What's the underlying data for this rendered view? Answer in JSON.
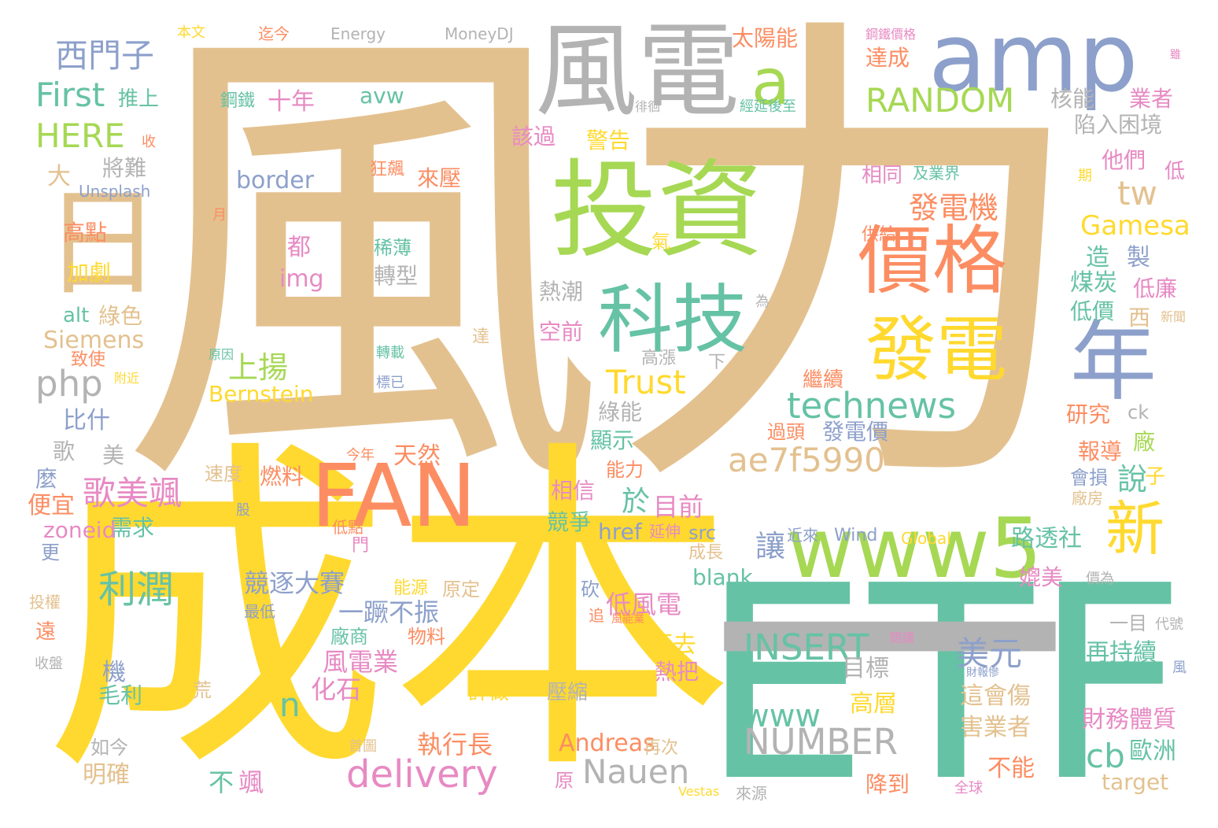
{
  "palette": {
    "tan": "#E3C18F",
    "yellow": "#FFD92F",
    "teal": "#66C2A5",
    "blue": "#8DA0CB",
    "green": "#A6D854",
    "orange": "#FC8D62",
    "gray": "#B3B3B3",
    "pink": "#E78AC3"
  },
  "words": [
    {
      "text": "風力",
      "color": "tan"
    },
    {
      "text": "成本",
      "color": "yellow"
    },
    {
      "text": "ETF",
      "color": "teal"
    },
    {
      "text": "amp",
      "color": "blue"
    },
    {
      "text": "風電",
      "color": "gray"
    },
    {
      "text": "投資",
      "color": "green"
    },
    {
      "text": "價格",
      "color": "orange"
    },
    {
      "text": "發電",
      "color": "yellow"
    },
    {
      "text": "年",
      "color": "blue"
    },
    {
      "text": "科技",
      "color": "teal"
    },
    {
      "text": "FAN",
      "color": "orange"
    },
    {
      "text": "www5",
      "color": "green"
    },
    {
      "text": "新",
      "color": "yellow"
    },
    {
      "text": "a",
      "color": "green"
    },
    {
      "text": "日",
      "color": "tan"
    },
    {
      "text": "一",
      "color": "gray"
    },
    {
      "text": "西門子",
      "color": "blue"
    },
    {
      "text": "First",
      "color": "teal"
    },
    {
      "text": "HERE",
      "color": "green"
    },
    {
      "text": "RANDOM",
      "color": "green"
    },
    {
      "text": "technews",
      "color": "teal"
    },
    {
      "text": "ae7f5990",
      "color": "tan"
    },
    {
      "text": "發電機",
      "color": "orange"
    },
    {
      "text": "tw",
      "color": "tan"
    },
    {
      "text": "Gamesa",
      "color": "yellow"
    },
    {
      "text": "php",
      "color": "gray"
    },
    {
      "text": "上揚",
      "color": "green"
    },
    {
      "text": "Trust",
      "color": "yellow"
    },
    {
      "text": "歌美颯",
      "color": "pink"
    },
    {
      "text": "利潤",
      "color": "teal"
    },
    {
      "text": "delivery",
      "color": "pink"
    },
    {
      "text": "Nauen",
      "color": "gray"
    },
    {
      "text": "INSERT",
      "color": "teal"
    },
    {
      "text": "NUMBER",
      "color": "gray"
    },
    {
      "text": "www",
      "color": "teal"
    },
    {
      "text": "美元",
      "color": "blue"
    },
    {
      "text": "cb",
      "color": "teal"
    },
    {
      "text": "n",
      "color": "teal"
    },
    {
      "text": "競逐大賽",
      "color": "blue"
    },
    {
      "text": "一蹶不振",
      "color": "blue"
    },
    {
      "text": "風電業",
      "color": "pink"
    },
    {
      "text": "化石",
      "color": "pink"
    },
    {
      "text": "執行長",
      "color": "orange"
    },
    {
      "text": "Andreas",
      "color": "orange"
    },
    {
      "text": "說",
      "color": "teal"
    },
    {
      "text": "讓",
      "color": "blue"
    },
    {
      "text": "於",
      "color": "teal"
    },
    {
      "text": "目前",
      "color": "pink"
    },
    {
      "text": "路透社",
      "color": "teal"
    },
    {
      "text": "低風電",
      "color": "pink"
    },
    {
      "text": "再持續",
      "color": "teal"
    },
    {
      "text": "這會傷",
      "color": "tan"
    },
    {
      "text": "害業者",
      "color": "tan"
    },
    {
      "text": "財務體質",
      "color": "pink"
    },
    {
      "text": "歐洲",
      "color": "teal"
    },
    {
      "text": "目標",
      "color": "gray"
    },
    {
      "text": "高層",
      "color": "yellow"
    },
    {
      "text": "十年",
      "color": "pink"
    },
    {
      "text": "avw",
      "color": "teal"
    },
    {
      "text": "border",
      "color": "blue"
    },
    {
      "text": "太陽能",
      "color": "orange"
    },
    {
      "text": "達成",
      "color": "orange"
    },
    {
      "text": "核能",
      "color": "gray"
    },
    {
      "text": "業者",
      "color": "pink"
    },
    {
      "text": "陷入困境",
      "color": "gray"
    },
    {
      "text": "鋼鐵",
      "color": "teal"
    },
    {
      "text": "推上",
      "color": "teal"
    },
    {
      "text": "該過",
      "color": "pink"
    },
    {
      "text": "警告",
      "color": "yellow"
    },
    {
      "text": "將難",
      "color": "gray"
    },
    {
      "text": "來壓",
      "color": "orange"
    },
    {
      "text": "狂飆",
      "color": "orange"
    },
    {
      "text": "相同",
      "color": "pink"
    },
    {
      "text": "及業界",
      "color": "teal"
    },
    {
      "text": "他們",
      "color": "pink"
    },
    {
      "text": "低",
      "color": "pink"
    },
    {
      "text": "大",
      "color": "tan"
    },
    {
      "text": "Unsplash",
      "color": "blue"
    },
    {
      "text": "高點",
      "color": "orange"
    },
    {
      "text": "加劇",
      "color": "yellow"
    },
    {
      "text": "都",
      "color": "pink"
    },
    {
      "text": "稀薄",
      "color": "teal"
    },
    {
      "text": "img",
      "color": "pink"
    },
    {
      "text": "轉型",
      "color": "gray"
    },
    {
      "text": "alt",
      "color": "teal"
    },
    {
      "text": "綠色",
      "color": "tan"
    },
    {
      "text": "Siemens",
      "color": "tan"
    },
    {
      "text": "致使",
      "color": "orange"
    },
    {
      "text": "比什",
      "color": "blue"
    },
    {
      "text": "Bernstein",
      "color": "yellow"
    },
    {
      "text": "綠能",
      "color": "gray"
    },
    {
      "text": "顯示",
      "color": "teal"
    },
    {
      "text": "空前",
      "color": "pink"
    },
    {
      "text": "熱潮",
      "color": "gray"
    },
    {
      "text": "高漲",
      "color": "gray"
    },
    {
      "text": "繼續",
      "color": "orange"
    },
    {
      "text": "過頭",
      "color": "orange"
    },
    {
      "text": "發電價",
      "color": "blue"
    },
    {
      "text": "研究",
      "color": "orange"
    },
    {
      "text": "報導",
      "color": "orange"
    },
    {
      "text": "會損",
      "color": "blue"
    },
    {
      "text": "廠房",
      "color": "tan"
    },
    {
      "text": "天然",
      "color": "orange"
    },
    {
      "text": "燃料",
      "color": "orange"
    },
    {
      "text": "速度",
      "color": "tan"
    },
    {
      "text": "能力",
      "color": "orange"
    },
    {
      "text": "相信",
      "color": "pink"
    },
    {
      "text": "競爭",
      "color": "teal"
    },
    {
      "text": "便宜",
      "color": "orange"
    },
    {
      "text": "需求",
      "color": "teal"
    },
    {
      "text": "zoneid",
      "color": "pink"
    },
    {
      "text": "src",
      "color": "blue"
    },
    {
      "text": "href",
      "color": "blue"
    },
    {
      "text": "blank",
      "color": "teal"
    },
    {
      "text": "成長",
      "color": "tan"
    },
    {
      "text": "延伸",
      "color": "pink"
    },
    {
      "text": "Wind",
      "color": "blue"
    },
    {
      "text": "Global",
      "color": "yellow"
    },
    {
      "text": "近來",
      "color": "blue"
    },
    {
      "text": "低點",
      "color": "orange"
    },
    {
      "text": "能源",
      "color": "yellow"
    },
    {
      "text": "原定",
      "color": "tan"
    },
    {
      "text": "媲美",
      "color": "pink"
    },
    {
      "text": "價為",
      "color": "gray"
    },
    {
      "text": "最低",
      "color": "blue"
    },
    {
      "text": "廠商",
      "color": "teal"
    },
    {
      "text": "物料",
      "color": "orange"
    },
    {
      "text": "下去",
      "color": "yellow"
    },
    {
      "text": "熱把",
      "color": "pink"
    },
    {
      "text": "機",
      "color": "blue"
    },
    {
      "text": "毛利",
      "color": "teal"
    },
    {
      "text": "荒",
      "color": "tan"
    },
    {
      "text": "許做",
      "color": "yellow"
    },
    {
      "text": "壓縮",
      "color": "gray"
    },
    {
      "text": "如今",
      "color": "gray"
    },
    {
      "text": "首圖",
      "color": "tan"
    },
    {
      "text": "再次",
      "color": "tan"
    },
    {
      "text": "明確",
      "color": "tan"
    },
    {
      "text": "降到",
      "color": "orange"
    },
    {
      "text": "不能",
      "color": "orange"
    },
    {
      "text": "target",
      "color": "tan"
    },
    {
      "text": "Vestas",
      "color": "yellow"
    },
    {
      "text": "來源",
      "color": "gray"
    },
    {
      "text": "全球",
      "color": "pink"
    },
    {
      "text": "原",
      "color": "pink"
    },
    {
      "text": "不",
      "color": "teal"
    },
    {
      "text": "颯",
      "color": "pink"
    },
    {
      "text": "收盤",
      "color": "gray"
    },
    {
      "text": "投權",
      "color": "tan"
    },
    {
      "text": "遠",
      "color": "orange"
    },
    {
      "text": "更",
      "color": "blue"
    },
    {
      "text": "麼",
      "color": "blue"
    },
    {
      "text": "歌",
      "color": "gray"
    },
    {
      "text": "美",
      "color": "gray"
    },
    {
      "text": "本文",
      "color": "yellow"
    },
    {
      "text": "迄今",
      "color": "orange"
    },
    {
      "text": "Energy",
      "color": "gray"
    },
    {
      "text": "MoneyDJ",
      "color": "gray"
    },
    {
      "text": "鋼鐵價格",
      "color": "pink"
    },
    {
      "text": "徘徊",
      "color": "gray"
    },
    {
      "text": "經延後至",
      "color": "teal"
    },
    {
      "text": "收",
      "color": "orange"
    },
    {
      "text": "月",
      "color": "orange"
    },
    {
      "text": "期",
      "color": "yellow"
    },
    {
      "text": "供給",
      "color": "orange"
    },
    {
      "text": "氣",
      "color": "yellow"
    },
    {
      "text": "為",
      "color": "gray"
    },
    {
      "text": "造",
      "color": "teal"
    },
    {
      "text": "製",
      "color": "blue"
    },
    {
      "text": "煤炭",
      "color": "teal"
    },
    {
      "text": "低廉",
      "color": "pink"
    },
    {
      "text": "低價",
      "color": "teal"
    },
    {
      "text": "西",
      "color": "tan"
    },
    {
      "text": "新聞",
      "color": "tan"
    },
    {
      "text": "達",
      "color": "tan"
    },
    {
      "text": "原因",
      "color": "teal"
    },
    {
      "text": "轉載",
      "color": "teal"
    },
    {
      "text": "附近",
      "color": "yellow"
    },
    {
      "text": "標已",
      "color": "blue"
    },
    {
      "text": "下",
      "color": "gray"
    },
    {
      "text": "ck",
      "color": "gray"
    },
    {
      "text": "廠",
      "color": "green"
    },
    {
      "text": "子",
      "color": "yellow"
    },
    {
      "text": "今年",
      "color": "orange"
    },
    {
      "text": "股",
      "color": "blue"
    },
    {
      "text": "門",
      "color": "pink"
    },
    {
      "text": "砍",
      "color": "blue"
    },
    {
      "text": "追",
      "color": "orange"
    },
    {
      "text": "風能業",
      "color": "orange"
    },
    {
      "text": "閱讀",
      "color": "pink"
    },
    {
      "text": "財報慘",
      "color": "blue"
    },
    {
      "text": "一目",
      "color": "gray"
    },
    {
      "text": "代號",
      "color": "gray"
    },
    {
      "text": "風",
      "color": "blue"
    },
    {
      "text": "雖",
      "color": "pink"
    }
  ]
}
